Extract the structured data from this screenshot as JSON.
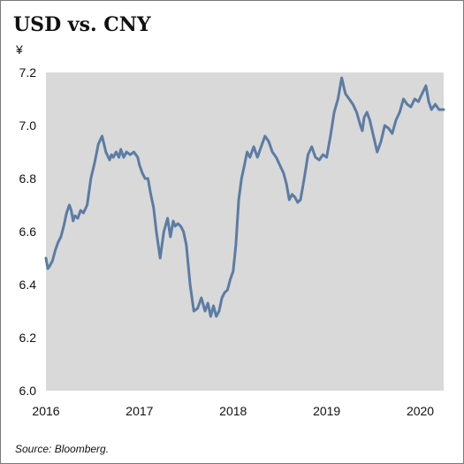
{
  "chart_data": {
    "type": "line",
    "title": "USD vs. CNY",
    "unit_label": "¥",
    "source": "Source: Bloomberg.",
    "xlim": [
      2016.0,
      2020.25
    ],
    "ylim": [
      6.0,
      7.2
    ],
    "x_ticks": [
      {
        "value": 2016,
        "label": "2016"
      },
      {
        "value": 2017,
        "label": "2017"
      },
      {
        "value": 2018,
        "label": "2018"
      },
      {
        "value": 2019,
        "label": "2019"
      },
      {
        "value": 2020,
        "label": "2020"
      }
    ],
    "y_ticks": [
      {
        "value": 6.0,
        "label": "6.0"
      },
      {
        "value": 6.2,
        "label": "6.2"
      },
      {
        "value": 6.4,
        "label": "6.4"
      },
      {
        "value": 6.6,
        "label": "6.6"
      },
      {
        "value": 6.8,
        "label": "6.8"
      },
      {
        "value": 7.0,
        "label": "7.0"
      },
      {
        "value": 7.2,
        "label": "7.2"
      }
    ],
    "grid": false,
    "background_color": "#d9d9d9",
    "line_color": "#5b7ca4",
    "series": [
      {
        "x": [
          2016.0,
          2016.02,
          2016.04,
          2016.07,
          2016.1,
          2016.13,
          2016.16,
          2016.19,
          2016.22,
          2016.25,
          2016.27,
          2016.29,
          2016.31,
          2016.34,
          2016.37,
          2016.4,
          2016.44,
          2016.48,
          2016.52,
          2016.56,
          2016.6,
          2016.64,
          2016.68,
          2016.7,
          2016.72,
          2016.75,
          2016.78,
          2016.8,
          2016.83,
          2016.86,
          2016.9,
          2016.94,
          2016.98,
          2017.0,
          2017.03,
          2017.06,
          2017.09,
          2017.12,
          2017.15,
          2017.18,
          2017.22,
          2017.26,
          2017.3,
          2017.33,
          2017.36,
          2017.38,
          2017.41,
          2017.44,
          2017.47,
          2017.5,
          2017.54,
          2017.58,
          2017.62,
          2017.66,
          2017.7,
          2017.73,
          2017.76,
          2017.79,
          2017.82,
          2017.85,
          2017.88,
          2017.91,
          2017.94,
          2017.97,
          2018.0,
          2018.03,
          2018.06,
          2018.09,
          2018.12,
          2018.15,
          2018.18,
          2018.22,
          2018.26,
          2018.3,
          2018.34,
          2018.38,
          2018.42,
          2018.46,
          2018.5,
          2018.54,
          2018.57,
          2018.6,
          2018.63,
          2018.66,
          2018.69,
          2018.72,
          2018.76,
          2018.8,
          2018.84,
          2018.88,
          2018.92,
          2018.96,
          2019.0,
          2019.04,
          2019.08,
          2019.12,
          2019.16,
          2019.2,
          2019.24,
          2019.28,
          2019.32,
          2019.36,
          2019.38,
          2019.4,
          2019.43,
          2019.46,
          2019.5,
          2019.54,
          2019.58,
          2019.62,
          2019.66,
          2019.7,
          2019.74,
          2019.78,
          2019.82,
          2019.86,
          2019.9,
          2019.94,
          2019.98,
          2020.02,
          2020.06,
          2020.09,
          2020.12,
          2020.16,
          2020.2,
          2020.25
        ],
        "y": [
          6.5,
          6.46,
          6.47,
          6.49,
          6.53,
          6.56,
          6.58,
          6.62,
          6.67,
          6.7,
          6.68,
          6.64,
          6.66,
          6.65,
          6.68,
          6.67,
          6.7,
          6.8,
          6.86,
          6.93,
          6.96,
          6.9,
          6.87,
          6.89,
          6.88,
          6.9,
          6.88,
          6.91,
          6.88,
          6.9,
          6.89,
          6.9,
          6.88,
          6.85,
          6.82,
          6.8,
          6.8,
          6.74,
          6.69,
          6.6,
          6.5,
          6.6,
          6.65,
          6.58,
          6.64,
          6.62,
          6.63,
          6.62,
          6.6,
          6.55,
          6.4,
          6.3,
          6.31,
          6.35,
          6.3,
          6.33,
          6.28,
          6.32,
          6.28,
          6.3,
          6.35,
          6.37,
          6.38,
          6.42,
          6.45,
          6.55,
          6.72,
          6.8,
          6.85,
          6.9,
          6.88,
          6.92,
          6.88,
          6.92,
          6.96,
          6.94,
          6.9,
          6.88,
          6.85,
          6.82,
          6.78,
          6.72,
          6.74,
          6.73,
          6.71,
          6.72,
          6.8,
          6.89,
          6.92,
          6.88,
          6.87,
          6.89,
          6.88,
          6.96,
          7.05,
          7.1,
          7.18,
          7.12,
          7.1,
          7.08,
          7.05,
          7.0,
          6.98,
          7.03,
          7.05,
          7.02,
          6.96,
          6.9,
          6.94,
          7.0,
          6.99,
          6.97,
          7.02,
          7.05,
          7.1,
          7.08,
          7.07,
          7.1,
          7.09,
          7.12,
          7.15,
          7.09,
          7.06,
          7.08,
          7.06,
          7.06
        ]
      }
    ]
  }
}
